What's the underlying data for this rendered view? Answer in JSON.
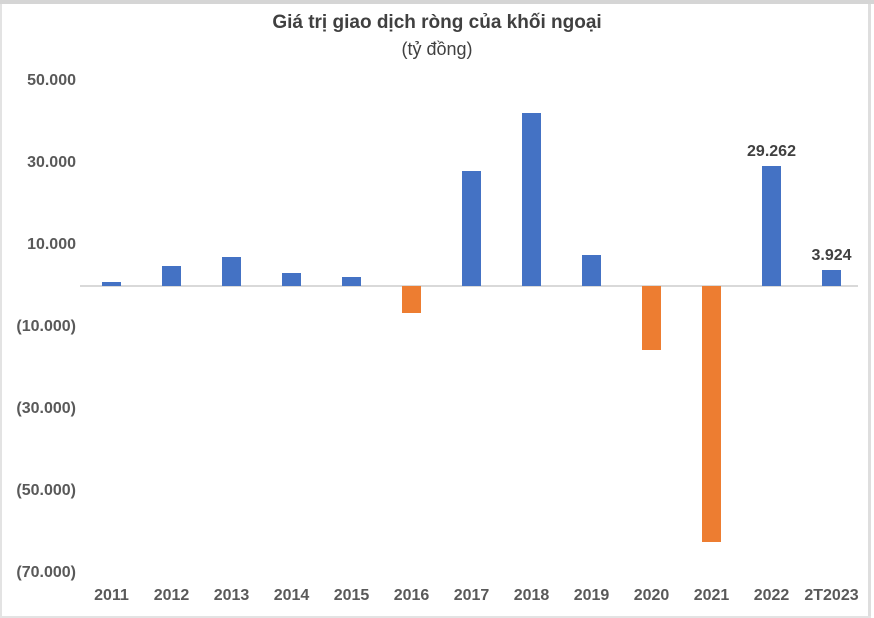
{
  "chart_data": {
    "type": "bar",
    "title": "Giá trị giao dịch ròng của khối ngoại",
    "subtitle": "(tỷ đồng)",
    "unit": "tỷ đồng",
    "categories": [
      "2011",
      "2012",
      "2013",
      "2014",
      "2015",
      "2016",
      "2017",
      "2018",
      "2019",
      "2020",
      "2021",
      "2022",
      "2T2023"
    ],
    "values": [
      1000,
      4900,
      7000,
      3100,
      2100,
      -6500,
      28100,
      42100,
      7600,
      -15600,
      -62500,
      29262,
      3924
    ],
    "value_labels": [
      "",
      "",
      "",
      "",
      "",
      "",
      "",
      "",
      "",
      "",
      "",
      "29.262",
      "3.924"
    ],
    "y_ticks": [
      {
        "value": 50000,
        "label": "50.000"
      },
      {
        "value": 30000,
        "label": "30.000"
      },
      {
        "value": 10000,
        "label": "10.000"
      },
      {
        "value": -10000,
        "label": "(10.000)"
      },
      {
        "value": -30000,
        "label": "(30.000)"
      },
      {
        "value": -50000,
        "label": "(50.000)"
      },
      {
        "value": -70000,
        "label": "(70.000)"
      }
    ],
    "ylim": [
      -75000,
      52000
    ],
    "gridlines": false,
    "legend": "none",
    "colors": {
      "positive": "#4472C4",
      "negative": "#ED7D31",
      "axis_line": "#D9D9D9",
      "tick_text": "#595959",
      "title_text": "#404040"
    }
  }
}
